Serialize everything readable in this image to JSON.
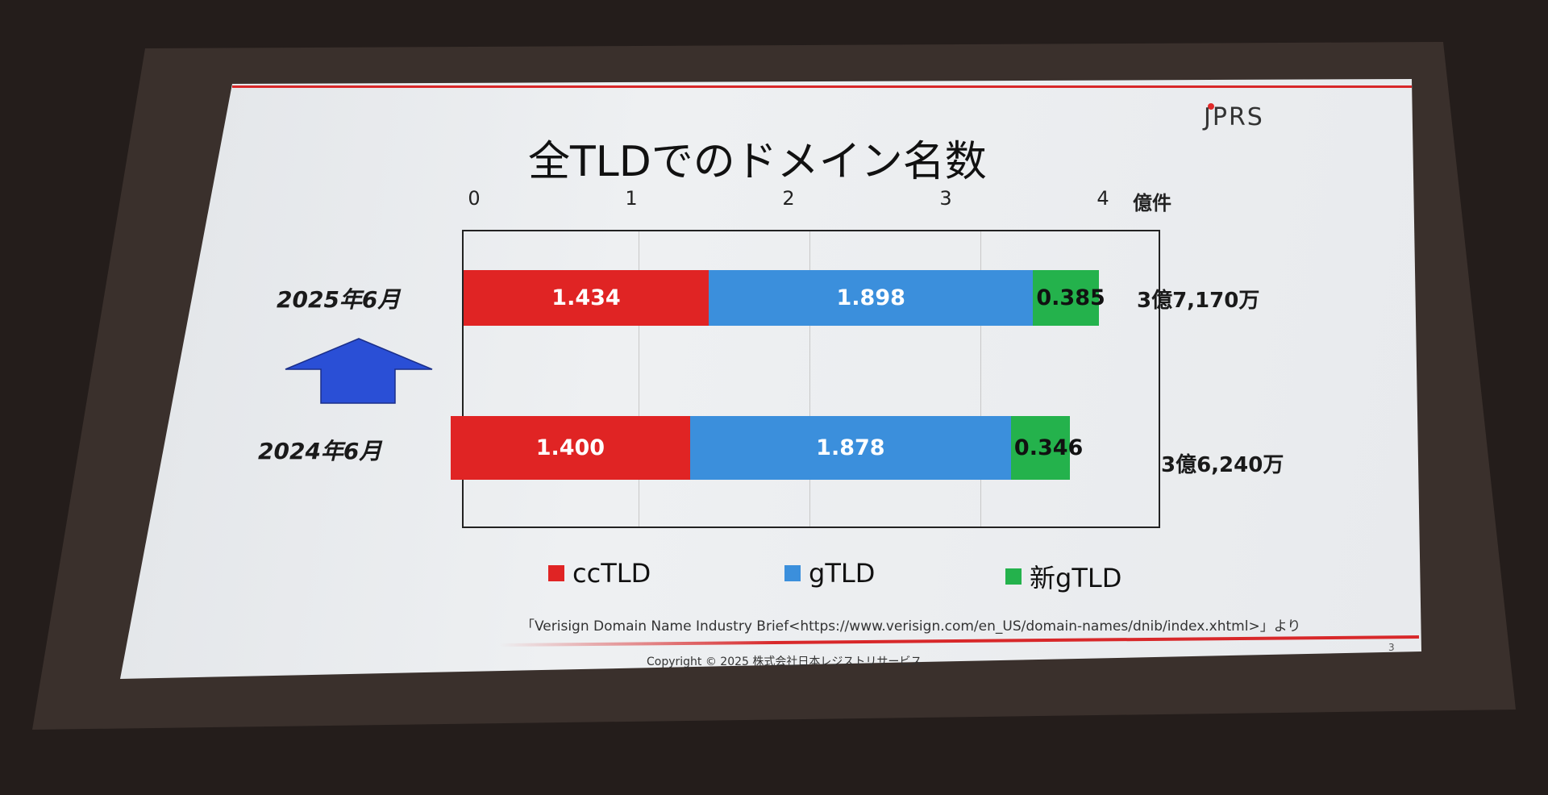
{
  "slide": {
    "logo": "JPRS",
    "page_number": "3",
    "source": "「Verisign Domain Name Industry Brief<https://www.verisign.com/en_US/domain-names/dnib/index.xhtml>」より",
    "copyright": "Copyright © 2025 株式会社日本レジストリサービス"
  },
  "chart_data": {
    "type": "bar",
    "orientation": "horizontal",
    "stacked": true,
    "title": "全TLDでのドメイン名数",
    "xunit": "億件",
    "xlim": [
      0,
      4
    ],
    "xticks": [
      "0",
      "1",
      "2",
      "3",
      "4"
    ],
    "grid": true,
    "legend_position": "bottom",
    "categories": [
      "2025年6月",
      "2024年6月"
    ],
    "totals": [
      "3億7,170万",
      "3億6,240万"
    ],
    "series": [
      {
        "name": "ccTLD",
        "color": "#e02424",
        "values": [
          1.434,
          1.4
        ],
        "labels": [
          "1.434",
          "1.400"
        ]
      },
      {
        "name": "gTLD",
        "color": "#3b8fdc",
        "values": [
          1.898,
          1.878
        ],
        "labels": [
          "1.898",
          "1.878"
        ]
      },
      {
        "name": "新gTLD",
        "color": "#24b24c",
        "values": [
          0.385,
          0.346
        ],
        "labels": [
          "0.385",
          "0.346"
        ]
      }
    ],
    "annotation_arrow": {
      "direction": "up",
      "color": "#2a4fd6"
    }
  }
}
